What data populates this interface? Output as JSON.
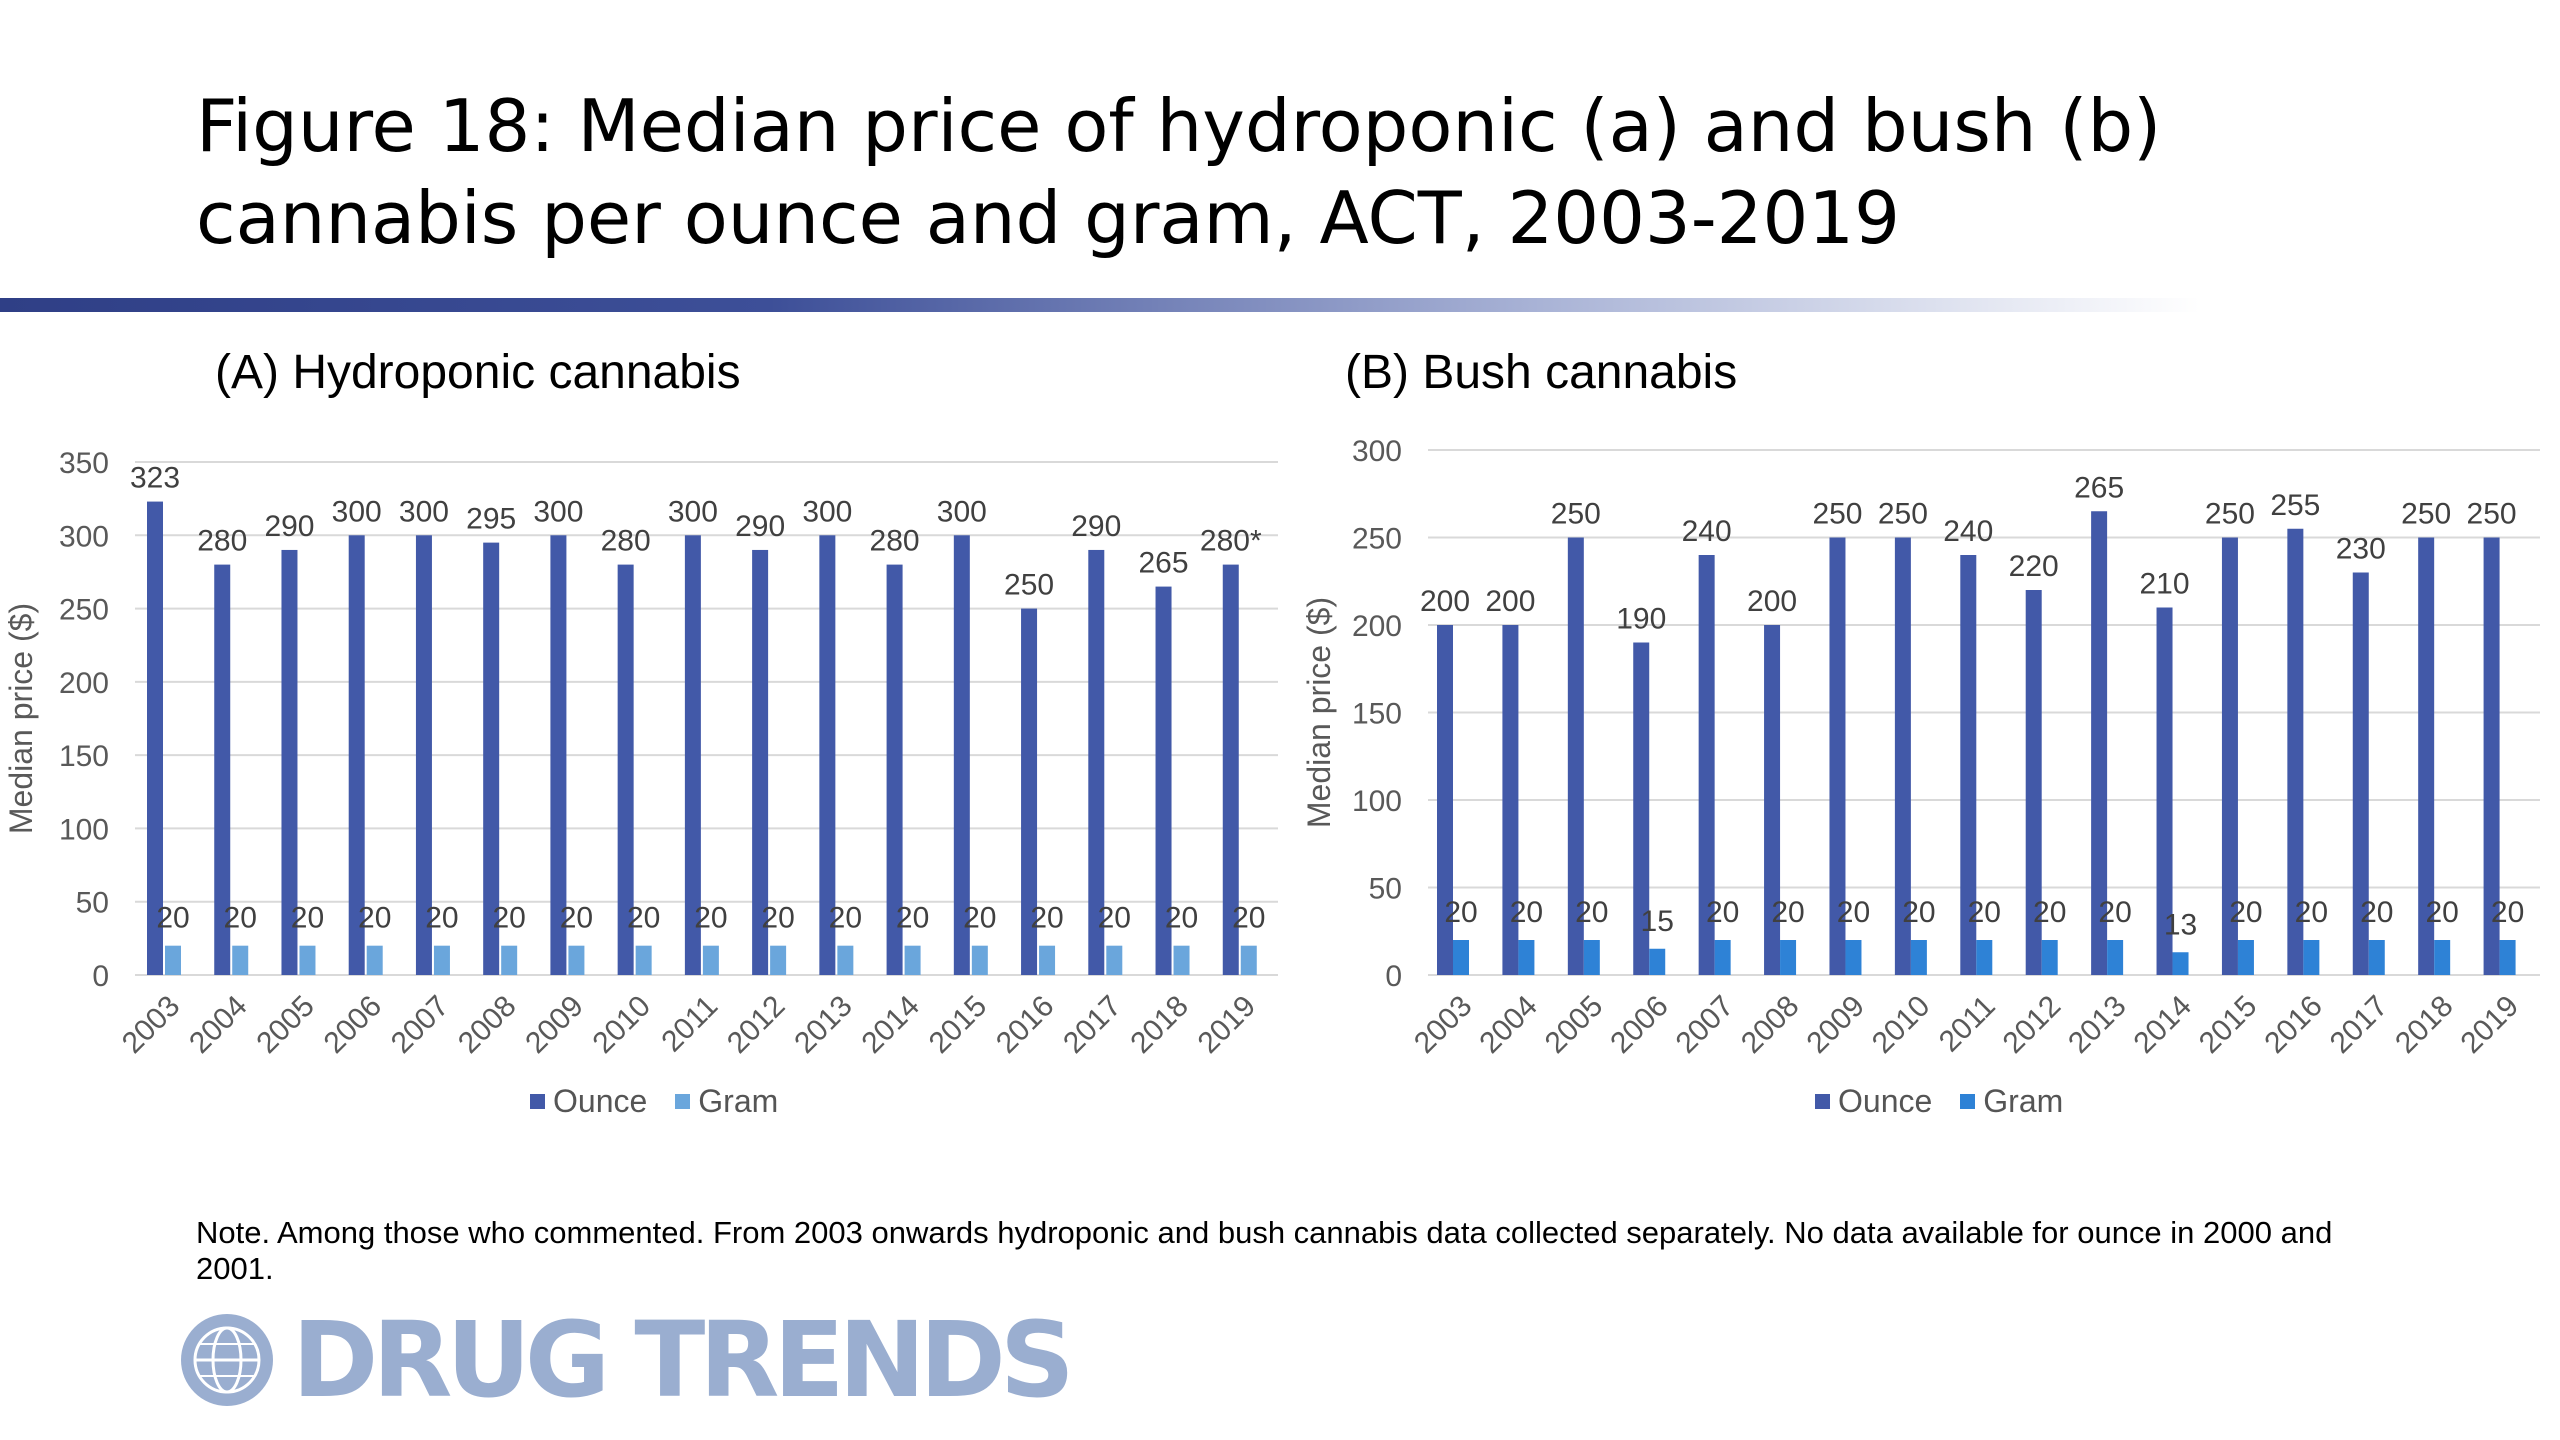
{
  "slide": {
    "title": "Figure 18: Median price of hydroponic (a) and bush (b) cannabis per ounce and gram, ACT, 2003-2019",
    "note": "Note. Among those who commented. From 2003 onwards hydroponic and bush cannabis data collected separately. No data available for ounce in 2000 and 2001.",
    "logo_text": "DRUG TRENDS",
    "accent_color": "#3d4f98"
  },
  "chart_data": [
    {
      "type": "bar",
      "title": "(A) Hydroponic cannabis",
      "ylabel": "Median price ($)",
      "xlabel": "",
      "ylim": [
        0,
        350
      ],
      "yticks": [
        0,
        50,
        100,
        150,
        200,
        250,
        300,
        350
      ],
      "grid": true,
      "legend": "bottom",
      "categories": [
        "2003",
        "2004",
        "2005",
        "2006",
        "2007",
        "2008",
        "2009",
        "2010",
        "2011",
        "2012",
        "2013",
        "2014",
        "2015",
        "2016",
        "2017",
        "2018",
        "2019"
      ],
      "series": [
        {
          "name": "Ounce",
          "color": "#4259a8",
          "values": [
            323,
            280,
            290,
            300,
            300,
            295,
            300,
            280,
            300,
            290,
            300,
            280,
            300,
            250,
            290,
            265,
            280
          ],
          "labels": [
            "323",
            "280",
            "290",
            "300",
            "300",
            "295",
            "300",
            "280",
            "300",
            "290",
            "300",
            "280",
            "300",
            "250",
            "290",
            "265",
            "280*"
          ]
        },
        {
          "name": "Gram",
          "color": "#6aa6dc",
          "values": [
            20,
            20,
            20,
            20,
            20,
            20,
            20,
            20,
            20,
            20,
            20,
            20,
            20,
            20,
            20,
            20,
            20
          ],
          "labels": [
            "20",
            "20",
            "20",
            "20",
            "20",
            "20",
            "20",
            "20",
            "20",
            "20",
            "20",
            "20",
            "20",
            "20",
            "20",
            "20",
            "20"
          ]
        }
      ]
    },
    {
      "type": "bar",
      "title": "(B) Bush cannabis",
      "ylabel": "Median price ($)",
      "xlabel": "",
      "ylim": [
        0,
        300
      ],
      "yticks": [
        0,
        50,
        100,
        150,
        200,
        250,
        300
      ],
      "grid": true,
      "legend": "bottom",
      "categories": [
        "2003",
        "2004",
        "2005",
        "2006",
        "2007",
        "2008",
        "2009",
        "2010",
        "2011",
        "2012",
        "2013",
        "2014",
        "2015",
        "2016",
        "2017",
        "2018",
        "2019"
      ],
      "series": [
        {
          "name": "Ounce",
          "color": "#4259a8",
          "values": [
            200,
            200,
            250,
            190,
            240,
            200,
            250,
            250,
            240,
            220,
            265,
            210,
            250,
            255,
            230,
            250,
            250
          ],
          "labels": [
            "200",
            "200",
            "250",
            "190",
            "240",
            "200",
            "250",
            "250",
            "240",
            "220",
            "265",
            "210",
            "250",
            "255",
            "230",
            "250",
            "250"
          ]
        },
        {
          "name": "Gram",
          "color": "#2e82d6",
          "values": [
            20,
            20,
            20,
            15,
            20,
            20,
            20,
            20,
            20,
            20,
            20,
            13,
            20,
            20,
            20,
            20,
            20
          ],
          "labels": [
            "20",
            "20",
            "20",
            "15",
            "20",
            "20",
            "20",
            "20",
            "20",
            "20",
            "20",
            "13",
            "20",
            "20",
            "20",
            "20",
            "20"
          ]
        }
      ]
    }
  ]
}
